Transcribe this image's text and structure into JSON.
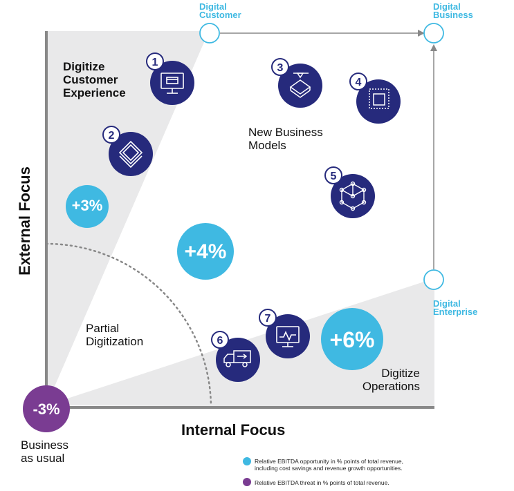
{
  "corners": {
    "digital_customer": [
      "Digital",
      "Customer"
    ],
    "digital_business": [
      "Digital",
      "Business"
    ],
    "digital_enterprise": [
      "Digital",
      "Enterprise"
    ]
  },
  "regions": {
    "digitize_customer_experience": [
      "Digitize",
      "Customer",
      "Experience"
    ],
    "new_business_models": [
      "New Business",
      "Models"
    ],
    "partial_digitization": [
      "Partial",
      "Digitization"
    ],
    "digitize_operations": [
      "Digitize",
      "Operations"
    ],
    "business_as_usual": [
      "Business",
      "as usual"
    ]
  },
  "axes": {
    "y_label": "External Focus",
    "x_label": "Internal Focus"
  },
  "bubbles": {
    "plus3": "+3%",
    "plus4": "+4%",
    "plus6": "+6%",
    "minus3": "-3%"
  },
  "items": [
    {
      "number": "1",
      "icon": "monitor-card-icon"
    },
    {
      "number": "2",
      "icon": "layers-icon"
    },
    {
      "number": "3",
      "icon": "3d-printer-icon"
    },
    {
      "number": "4",
      "icon": "squares-icon"
    },
    {
      "number": "5",
      "icon": "network-cube-icon"
    },
    {
      "number": "6",
      "icon": "truck-icon"
    },
    {
      "number": "7",
      "icon": "monitor-chart-icon"
    }
  ],
  "legend": {
    "opportunity": [
      "Relative EBITDA opportunity in % points of total revenue,",
      "including cost savings and revenue growth opportunities."
    ],
    "threat": "Relative EBITDA threat in % points of total revenue."
  },
  "colors": {
    "navy": "#262a7c",
    "light_blue": "#3fb9e2",
    "purple": "#7a3c92",
    "gray_fill": "#e9e9ea",
    "axis_gray": "#888888"
  }
}
